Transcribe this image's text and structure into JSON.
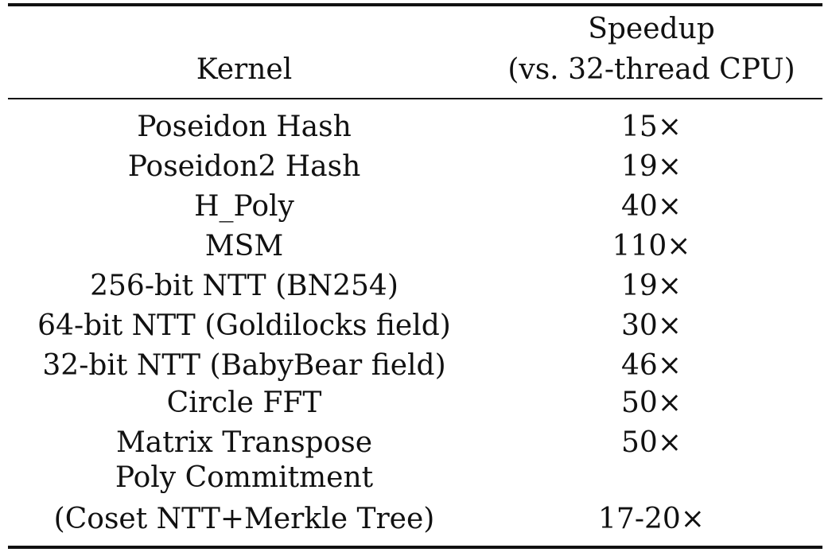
{
  "table": {
    "header": {
      "kernel": "Kernel",
      "speedup_line1": "Speedup",
      "speedup_line2": "(vs. 32-thread CPU)"
    },
    "rows": [
      {
        "kernel": "Poseidon Hash",
        "speedup": "15×"
      },
      {
        "kernel": "Poseidon2 Hash",
        "speedup": "19×"
      },
      {
        "kernel": "H_Poly",
        "speedup": "40×"
      },
      {
        "kernel": "MSM",
        "speedup": "110×"
      },
      {
        "kernel": "256-bit NTT (BN254)",
        "speedup": "19×"
      },
      {
        "kernel": "64-bit NTT (Goldilocks field)",
        "speedup": "30×"
      },
      {
        "kernel": "32-bit NTT (BabyBear field)",
        "speedup": "46×"
      },
      {
        "kernel": "Circle FFT",
        "speedup": "50×"
      },
      {
        "kernel": "Matrix Transpose",
        "speedup": "50×"
      },
      {
        "kernel": "Poly Commitment",
        "speedup": ""
      },
      {
        "kernel": "(Coset NTT+Merkle Tree)",
        "speedup": "17-20×"
      }
    ]
  }
}
